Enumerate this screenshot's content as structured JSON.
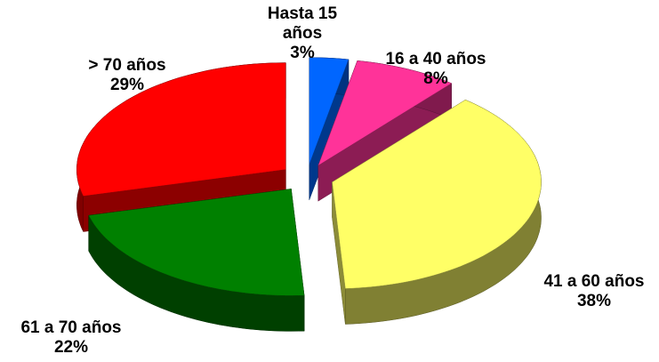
{
  "chart_data": {
    "type": "pie3d",
    "categories": [
      "Hasta 15 años",
      "16 a 40 años",
      "41 a 60 años",
      "61 a 70 años",
      "> 70 años"
    ],
    "values": [
      3,
      8,
      38,
      22,
      29
    ],
    "value_labels": [
      "3%",
      "8%",
      "38%",
      "22%",
      "29%"
    ],
    "colors": [
      "#0066ff",
      "#ff3399",
      "#ffff66",
      "#008000",
      "#ff0000"
    ]
  }
}
